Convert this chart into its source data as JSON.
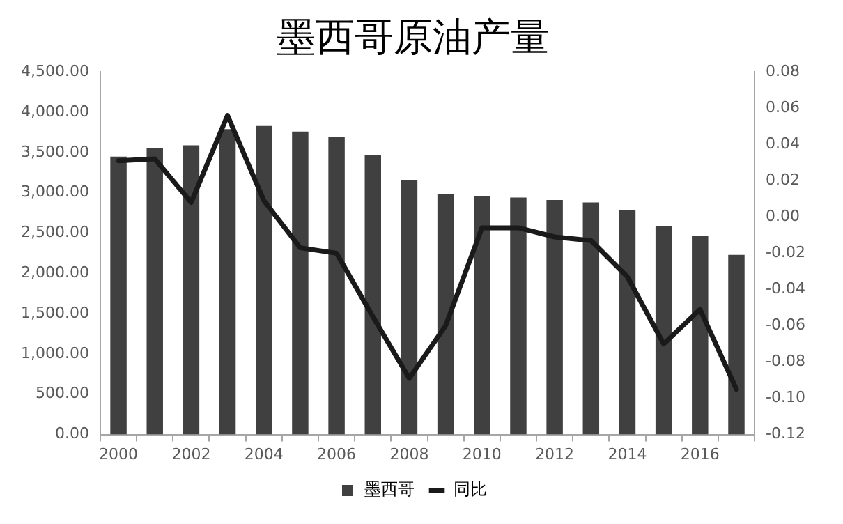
{
  "chart_data": {
    "type": "bar",
    "title": "墨西哥原油产量",
    "categories": [
      "2000",
      null,
      "2002",
      null,
      "2004",
      null,
      "2006",
      null,
      "2008",
      null,
      "2010",
      null,
      "2012",
      null,
      "2014",
      null,
      "2016",
      null
    ],
    "series": [
      {
        "name": "墨西哥",
        "color": "#404040",
        "values": [
          3450,
          3560,
          3590,
          3790,
          3830,
          3760,
          3690,
          3470,
          3160,
          2980,
          2960,
          2940,
          2910,
          2880,
          2790,
          2590,
          2460,
          2230
        ]
      },
      {
        "name": "同比",
        "type": "line",
        "axis": "y2",
        "color": "#1a1a1a",
        "values": [
          0.031,
          0.032,
          0.008,
          0.056,
          0.009,
          -0.017,
          -0.02,
          -0.055,
          -0.089,
          -0.06,
          -0.006,
          -0.006,
          -0.011,
          -0.013,
          -0.033,
          -0.07,
          -0.051,
          -0.095
        ]
      }
    ],
    "ylim": [
      0,
      4500
    ],
    "yticks": [
      {
        "value": 0,
        "label": "0.00"
      },
      {
        "value": 500,
        "label": "500.00"
      },
      {
        "value": 1000,
        "label": "1,000.00"
      },
      {
        "value": 1500,
        "label": "1,500.00"
      },
      {
        "value": 2000,
        "label": "2,000.00"
      },
      {
        "value": 2500,
        "label": "2,500.00"
      },
      {
        "value": 3000,
        "label": "3,000.00"
      },
      {
        "value": 3500,
        "label": "3,500.00"
      },
      {
        "value": 4000,
        "label": "4,000.00"
      },
      {
        "value": 4500,
        "label": "4,500.00"
      }
    ],
    "y2lim": [
      -0.12,
      0.08
    ],
    "y2ticks": [
      {
        "value": -0.12,
        "label": "-0.12"
      },
      {
        "value": -0.1,
        "label": "-0.10"
      },
      {
        "value": -0.08,
        "label": "-0.08"
      },
      {
        "value": -0.06,
        "label": "-0.06"
      },
      {
        "value": -0.04,
        "label": "-0.04"
      },
      {
        "value": -0.02,
        "label": "-0.02"
      },
      {
        "value": 0,
        "label": "0.00"
      },
      {
        "value": 0.02,
        "label": "0.02"
      },
      {
        "value": 0.04,
        "label": "0.04"
      },
      {
        "value": 0.06,
        "label": "0.06"
      },
      {
        "value": 0.08,
        "label": "0.08"
      }
    ],
    "grid": false,
    "legend": "bottom",
    "marker": "none",
    "line_style": "solid"
  }
}
